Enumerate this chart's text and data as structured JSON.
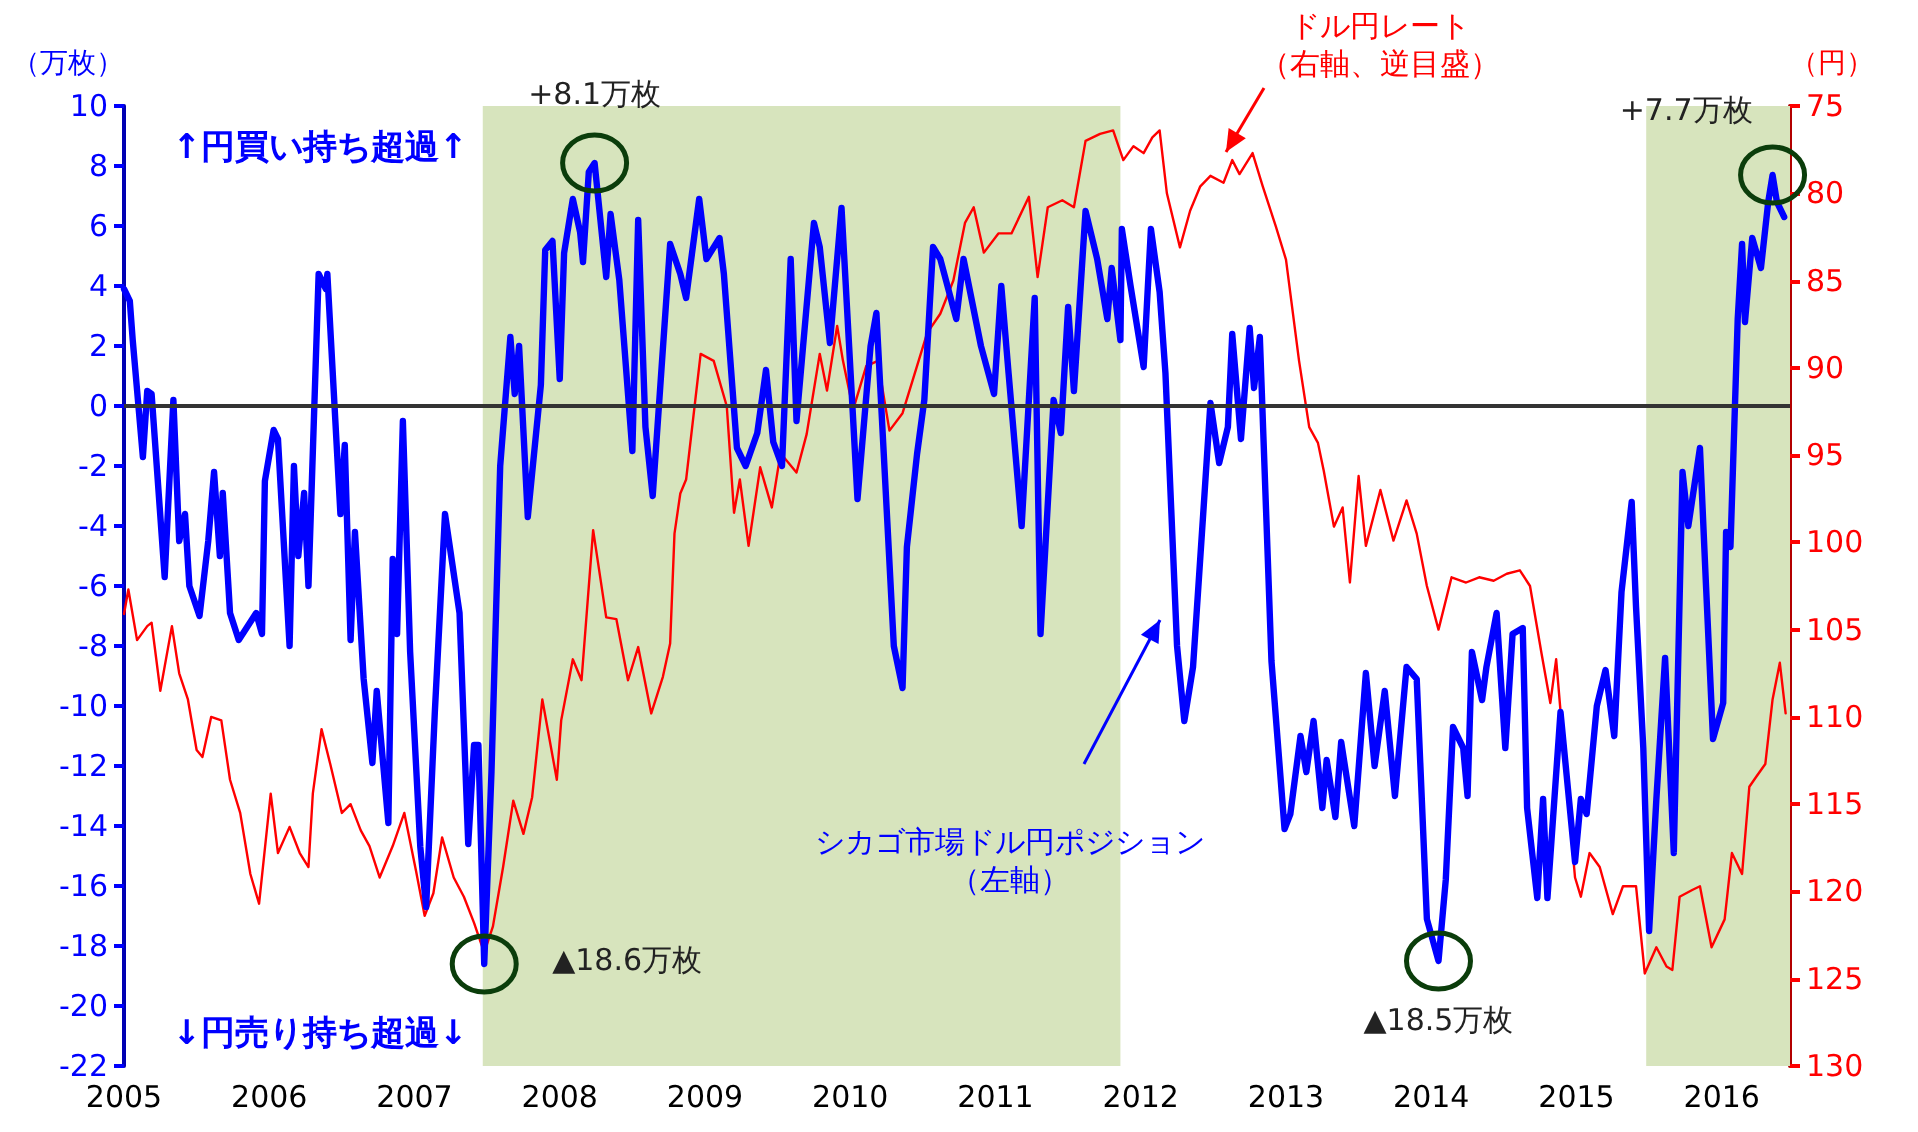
{
  "chart_data": {
    "type": "line",
    "ylabel": "（万枚）",
    "y2label": "（円）",
    "xlim": [
      2005,
      2016.47
    ],
    "xticks": [
      2005,
      2006,
      2007,
      2008,
      2009,
      2010,
      2011,
      2012,
      2013,
      2014,
      2015,
      2016
    ],
    "ylim": [
      -22,
      10
    ],
    "yticks": [
      -22,
      -20,
      -18,
      -16,
      -14,
      -12,
      -10,
      -8,
      -6,
      -4,
      -2,
      0,
      2,
      4,
      6,
      8,
      10
    ],
    "y2lim": [
      130,
      75
    ],
    "y2ticks": [
      75,
      80,
      85,
      90,
      95,
      100,
      105,
      110,
      115,
      120,
      125,
      130
    ],
    "grid": false,
    "legend": false,
    "marker": "none",
    "line_style": "solid",
    "bands": [
      {
        "axis": "x",
        "from": 2007.47,
        "to": 2011.86,
        "color": "#d7e4bd"
      },
      {
        "axis": "x",
        "from": 2015.48,
        "to": 2016.47,
        "color": "#d7e4bd"
      }
    ],
    "ref_lines": [
      {
        "axis": "y",
        "value": 0,
        "color": "#333333"
      }
    ],
    "annotations": [
      "↑円買い持ち超過↑",
      "↓円売り持ち超過↓",
      {
        "text": "+8.1万枚",
        "x": 2008.24,
        "y": 8.1
      },
      {
        "text": "▲18.6万枚",
        "x": 2007.48,
        "y": -18.6
      },
      {
        "text": "▲18.5万枚",
        "x": 2014.05,
        "y": -18.5
      },
      {
        "text": "+7.7万枚",
        "x": 2016.35,
        "y": 7.7
      }
    ],
    "series": [
      {
        "name": "ドル円レート（右軸、逆目盛）",
        "color": "#ff0000",
        "axis": "y2",
        "x": [
          2005.0,
          2005.03,
          2005.09,
          2005.16,
          2005.19,
          2005.25,
          2005.33,
          2005.38,
          2005.44,
          2005.5,
          2005.54,
          2005.6,
          2005.67,
          2005.73,
          2005.8,
          2005.87,
          2005.93,
          2006.01,
          2006.06,
          2006.14,
          2006.21,
          2006.27,
          2006.3,
          2006.36,
          2006.42,
          2006.5,
          2006.56,
          2006.63,
          2006.69,
          2006.76,
          2006.85,
          2006.93,
          2007.01,
          2007.07,
          2007.13,
          2007.19,
          2007.27,
          2007.34,
          2007.41,
          2007.48,
          2007.54,
          2007.61,
          2007.68,
          2007.75,
          2007.81,
          2007.88,
          2007.98,
          2008.01,
          2008.09,
          2008.15,
          2008.23,
          2008.32,
          2008.39,
          2008.47,
          2008.54,
          2008.63,
          2008.71,
          2008.76,
          2008.79,
          2008.83,
          2008.87,
          2008.97,
          2009.06,
          2009.15,
          2009.2,
          2009.24,
          2009.3,
          2009.38,
          2009.46,
          2009.52,
          2009.63,
          2009.7,
          2009.79,
          2009.84,
          2009.91,
          2009.95,
          2010.02,
          2010.11,
          2010.19,
          2010.27,
          2010.36,
          2010.43,
          2010.53,
          2010.62,
          2010.71,
          2010.79,
          2010.85,
          2010.92,
          2011.02,
          2011.11,
          2011.23,
          2011.29,
          2011.36,
          2011.46,
          2011.54,
          2011.62,
          2011.72,
          2011.81,
          2011.88,
          2011.95,
          2012.02,
          2012.08,
          2012.13,
          2012.18,
          2012.27,
          2012.34,
          2012.41,
          2012.48,
          2012.57,
          2012.63,
          2012.68,
          2012.77,
          2012.84,
          2012.93,
          2013.0,
          2013.09,
          2013.16,
          2013.22,
          2013.26,
          2013.33,
          2013.39,
          2013.44,
          2013.5,
          2013.55,
          2013.65,
          2013.74,
          2013.83,
          2013.9,
          2013.97,
          2014.05,
          2014.14,
          2014.24,
          2014.33,
          2014.43,
          2014.52,
          2014.61,
          2014.68,
          2014.76,
          2014.82,
          2014.86,
          2014.93,
          2014.99,
          2015.03,
          2015.09,
          2015.16,
          2015.25,
          2015.32,
          2015.41,
          2015.47,
          2015.55,
          2015.62,
          2015.66,
          2015.71,
          2015.8,
          2015.85,
          2015.93,
          2016.02,
          2016.07,
          2016.14,
          2016.19,
          2016.24,
          2016.3,
          2016.35,
          2016.4,
          2016.44
        ],
        "values": [
          104.1,
          102.7,
          105.6,
          104.8,
          104.6,
          108.5,
          104.8,
          107.5,
          109,
          111.9,
          112.3,
          110,
          110.2,
          113.6,
          115.5,
          119,
          120.7,
          114.4,
          117.8,
          116.3,
          117.8,
          118.6,
          114.4,
          110.7,
          112.7,
          115.5,
          115,
          116.5,
          117.4,
          119.2,
          117.4,
          115.5,
          118.8,
          121.4,
          120.1,
          116.9,
          119.2,
          120.3,
          121.8,
          123.5,
          122,
          118.6,
          114.8,
          116.7,
          114.6,
          109,
          113.6,
          110.2,
          106.7,
          107.9,
          99.3,
          104.3,
          104.4,
          107.9,
          106,
          109.8,
          107.7,
          105.8,
          99.5,
          97.2,
          96.4,
          89.2,
          89.6,
          92.2,
          98.3,
          96.4,
          100.2,
          95.7,
          98,
          94.9,
          96,
          93.8,
          89.2,
          91.3,
          87.6,
          89.6,
          92.4,
          89.9,
          89.6,
          93.6,
          92.6,
          90.7,
          88,
          86.9,
          85,
          81.7,
          80.8,
          83.4,
          82.3,
          82.3,
          80.2,
          84.8,
          80.8,
          80.4,
          80.8,
          77,
          76.6,
          76.4,
          78.1,
          77.3,
          77.7,
          76.8,
          76.4,
          80,
          83.1,
          81,
          79.6,
          79,
          79.4,
          78.1,
          78.9,
          77.7,
          79.6,
          81.9,
          83.8,
          89.6,
          93.4,
          94.3,
          95.9,
          99.1,
          98,
          102.3,
          96.2,
          100.2,
          97,
          99.9,
          97.6,
          99.5,
          102.5,
          105,
          102,
          102.3,
          102,
          102.2,
          101.8,
          101.6,
          102.5,
          106.4,
          109.2,
          106.7,
          113.6,
          119.2,
          120.3,
          117.8,
          118.6,
          121.3,
          119.7,
          119.7,
          124.7,
          123.2,
          124.3,
          124.5,
          120.3,
          119.9,
          119.7,
          123.2,
          121.6,
          117.8,
          119,
          114,
          113.4,
          112.7,
          109,
          106.9,
          109.8
        ]
      },
      {
        "name": "シカゴ市場ドル円ポジション（左軸）",
        "color": "#0000ff",
        "x": [
          2005.0,
          2005.04,
          2005.06,
          2005.13,
          2005.16,
          2005.19,
          2005.28,
          2005.34,
          2005.38,
          2005.42,
          2005.45,
          2005.52,
          2005.58,
          2005.62,
          2005.66,
          2005.68,
          2005.73,
          2005.79,
          2005.91,
          2005.95,
          2005.97,
          2006.03,
          2006.06,
          2006.14,
          2006.17,
          2006.2,
          2006.24,
          2006.27,
          2006.34,
          2006.39,
          2006.4,
          2006.49,
          2006.52,
          2006.56,
          2006.59,
          2006.65,
          2006.71,
          2006.74,
          2006.82,
          2006.85,
          2006.88,
          2006.92,
          2006.97,
          2007.04,
          2007.08,
          2007.14,
          2007.21,
          2007.31,
          2007.37,
          2007.41,
          2007.44,
          2007.48,
          2007.53,
          2007.59,
          2007.66,
          2007.69,
          2007.72,
          2007.78,
          2007.87,
          2007.9,
          2007.95,
          2008.0,
          2008.03,
          2008.09,
          2008.14,
          2008.16,
          2008.2,
          2008.24,
          2008.32,
          2008.35,
          2008.41,
          2008.5,
          2008.54,
          2008.59,
          2008.64,
          2008.76,
          2008.83,
          2008.87,
          2008.96,
          2009.01,
          2009.1,
          2009.13,
          2009.22,
          2009.28,
          2009.36,
          2009.42,
          2009.47,
          2009.53,
          2009.59,
          2009.63,
          2009.75,
          2009.79,
          2009.86,
          2009.94,
          2010.05,
          2010.14,
          2010.18,
          2010.3,
          2010.36,
          2010.39,
          2010.46,
          2010.51,
          2010.57,
          2010.62,
          2010.73,
          2010.78,
          2010.9,
          2010.99,
          2011.04,
          2011.09,
          2011.18,
          2011.27,
          2011.31,
          2011.4,
          2011.45,
          2011.5,
          2011.54,
          2011.62,
          2011.7,
          2011.77,
          2011.8,
          2011.86,
          2011.87,
          2011.93,
          2012.02,
          2012.07,
          2012.13,
          2012.17,
          2012.25,
          2012.3,
          2012.36,
          2012.43,
          2012.48,
          2012.54,
          2012.6,
          2012.63,
          2012.69,
          2012.75,
          2012.78,
          2012.82,
          2012.9,
          2012.99,
          2013.03,
          2013.1,
          2013.14,
          2013.19,
          2013.25,
          2013.28,
          2013.34,
          2013.38,
          2013.47,
          2013.55,
          2013.61,
          2013.68,
          2013.75,
          2013.83,
          2013.9,
          2013.97,
          2014.05,
          2014.1,
          2014.15,
          2014.22,
          2014.25,
          2014.28,
          2014.35,
          2014.38,
          2014.45,
          2014.51,
          2014.56,
          2014.63,
          2014.66,
          2014.73,
          2014.77,
          2014.8,
          2014.89,
          2014.99,
          2015.03,
          2015.07,
          2015.14,
          2015.2,
          2015.26,
          2015.31,
          2015.38,
          2015.41,
          2015.46,
          2015.5,
          2015.55,
          2015.61,
          2015.67,
          2015.73,
          2015.77,
          2015.85,
          2015.89,
          2015.94,
          2016.01,
          2016.03,
          2016.06,
          2016.11,
          2016.14,
          2016.16,
          2016.21,
          2016.27,
          2016.32,
          2016.35,
          2016.38,
          2016.43
        ],
        "values": [
          3.9,
          3.5,
          2.2,
          -1.7,
          0.5,
          0.4,
          -5.7,
          0.2,
          -4.5,
          -3.6,
          -6,
          -7,
          -4.5,
          -2.2,
          -5,
          -2.9,
          -6.9,
          -7.8,
          -6.9,
          -7.6,
          -2.5,
          -0.8,
          -1.1,
          -8,
          -2,
          -5,
          -2.9,
          -6,
          4.4,
          3.9,
          4.4,
          -3.6,
          -1.3,
          -7.8,
          -4.2,
          -9.1,
          -11.9,
          -9.5,
          -13.9,
          -5.1,
          -7.6,
          -0.5,
          -8.2,
          -14.7,
          -16.7,
          -10.2,
          -3.6,
          -6.9,
          -14.6,
          -11.3,
          -11.3,
          -18.6,
          -12.2,
          -2,
          2.3,
          0.4,
          2,
          -3.7,
          0.7,
          5.2,
          5.5,
          0.9,
          5.1,
          6.9,
          5.8,
          4.8,
          7.8,
          8.1,
          4.3,
          6.4,
          4.2,
          -1.5,
          6.2,
          -0.7,
          -3,
          5.4,
          4.4,
          3.6,
          6.9,
          4.9,
          5.6,
          4.4,
          -1.4,
          -2,
          -0.9,
          1.2,
          -1.2,
          -2,
          4.9,
          -0.5,
          6.1,
          5.3,
          2.1,
          6.6,
          -3.1,
          2,
          3.1,
          -8,
          -9.4,
          -4.7,
          -1.6,
          0.2,
          5.3,
          4.9,
          2.9,
          4.9,
          2,
          0.4,
          4,
          1.1,
          -4,
          3.6,
          -7.6,
          0.2,
          -0.9,
          3.3,
          0.5,
          6.5,
          4.9,
          2.9,
          4.6,
          2.2,
          5.9,
          4,
          1.3,
          5.9,
          3.8,
          1.1,
          -8,
          -10.5,
          -8.7,
          -3.6,
          0.1,
          -1.9,
          -0.7,
          2.4,
          -1.1,
          2.6,
          0.6,
          2.3,
          -8.5,
          -14.1,
          -13.6,
          -11,
          -12.2,
          -10.5,
          -13.4,
          -11.8,
          -13.7,
          -11.2,
          -14,
          -8.9,
          -12,
          -9.5,
          -13,
          -8.7,
          -9.1,
          -17.1,
          -18.5,
          -15.8,
          -10.7,
          -11.4,
          -13,
          -8.2,
          -9.8,
          -8.7,
          -6.9,
          -11.4,
          -7.6,
          -7.4,
          -13.4,
          -16.4,
          -13.1,
          -16.4,
          -10.2,
          -15.2,
          -13.1,
          -13.6,
          -10,
          -8.8,
          -11,
          -6.2,
          -3.2,
          -6.7,
          -11.4,
          -17.5,
          -13.1,
          -8.4,
          -14.9,
          -2.2,
          -4,
          -1.4,
          -5.8,
          -11.1,
          -9.9,
          -4.2,
          -4.7,
          2.9,
          5.4,
          2.8,
          5.6,
          4.6,
          6.8,
          7.7,
          6.8,
          6.3
        ]
      }
    ]
  }
}
